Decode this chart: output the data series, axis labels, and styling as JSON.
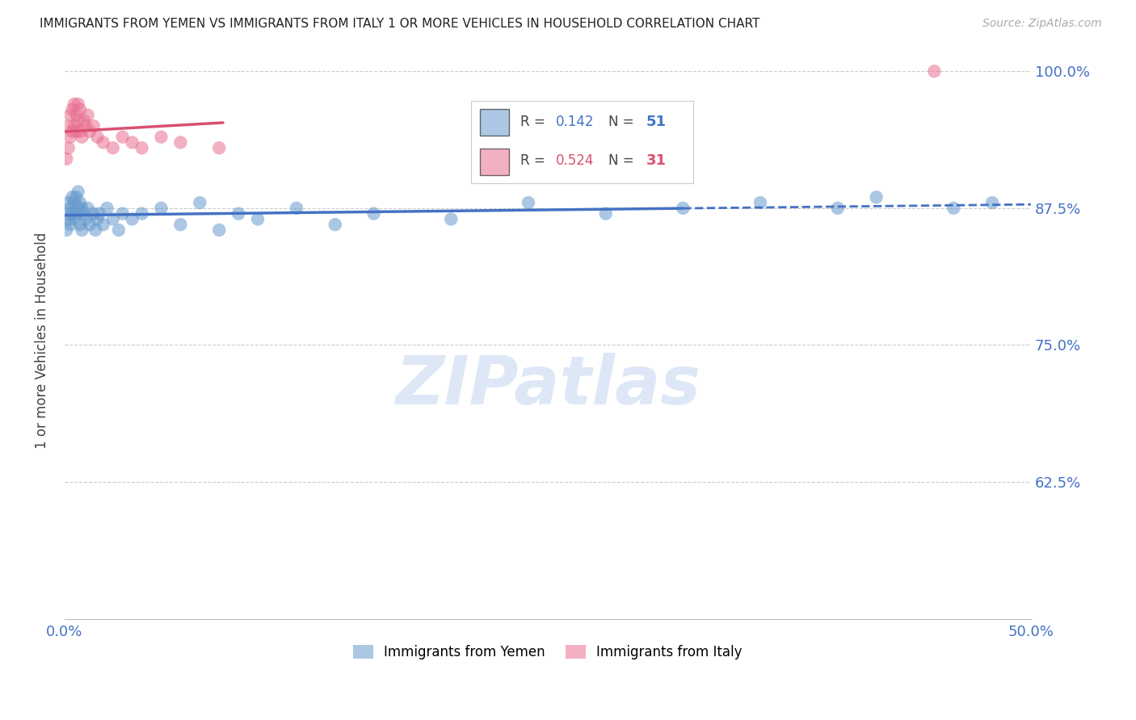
{
  "title": "IMMIGRANTS FROM YEMEN VS IMMIGRANTS FROM ITALY 1 OR MORE VEHICLES IN HOUSEHOLD CORRELATION CHART",
  "source": "Source: ZipAtlas.com",
  "ylabel": "1 or more Vehicles in Household",
  "xmin": 0.0,
  "xmax": 0.5,
  "ymin": 0.5,
  "ymax": 1.008,
  "yticks": [
    0.625,
    0.75,
    0.875,
    1.0
  ],
  "ytick_labels": [
    "62.5%",
    "75.0%",
    "87.5%",
    "100.0%"
  ],
  "yemen_color": "#6699cc",
  "italy_color": "#e87090",
  "yemen_line_color": "#4472c4",
  "italy_line_color": "#d95070",
  "background_color": "#ffffff",
  "grid_color": "#cccccc",
  "R_yemen": 0.142,
  "N_yemen": 51,
  "R_italy": 0.524,
  "N_italy": 31,
  "yemen_scatter_x": [
    0.001,
    0.001,
    0.002,
    0.002,
    0.003,
    0.003,
    0.004,
    0.004,
    0.005,
    0.005,
    0.006,
    0.006,
    0.007,
    0.007,
    0.008,
    0.008,
    0.009,
    0.009,
    0.01,
    0.011,
    0.012,
    0.013,
    0.015,
    0.016,
    0.017,
    0.018,
    0.02,
    0.022,
    0.025,
    0.028,
    0.03,
    0.035,
    0.04,
    0.05,
    0.06,
    0.07,
    0.08,
    0.09,
    0.1,
    0.12,
    0.14,
    0.16,
    0.2,
    0.24,
    0.28,
    0.32,
    0.36,
    0.4,
    0.42,
    0.46,
    0.48
  ],
  "yemen_scatter_y": [
    0.855,
    0.87,
    0.865,
    0.88,
    0.86,
    0.875,
    0.87,
    0.885,
    0.865,
    0.88,
    0.87,
    0.885,
    0.875,
    0.89,
    0.88,
    0.86,
    0.875,
    0.855,
    0.87,
    0.865,
    0.875,
    0.86,
    0.87,
    0.855,
    0.865,
    0.87,
    0.86,
    0.875,
    0.865,
    0.855,
    0.87,
    0.865,
    0.87,
    0.875,
    0.86,
    0.88,
    0.855,
    0.87,
    0.865,
    0.875,
    0.86,
    0.87,
    0.865,
    0.88,
    0.87,
    0.875,
    0.88,
    0.875,
    0.885,
    0.875,
    0.88
  ],
  "italy_scatter_x": [
    0.001,
    0.002,
    0.002,
    0.003,
    0.003,
    0.004,
    0.004,
    0.005,
    0.005,
    0.006,
    0.006,
    0.007,
    0.007,
    0.008,
    0.008,
    0.009,
    0.01,
    0.011,
    0.012,
    0.013,
    0.015,
    0.017,
    0.02,
    0.025,
    0.03,
    0.035,
    0.04,
    0.05,
    0.06,
    0.08,
    0.45
  ],
  "italy_scatter_y": [
    0.92,
    0.93,
    0.95,
    0.94,
    0.96,
    0.945,
    0.965,
    0.95,
    0.97,
    0.945,
    0.96,
    0.955,
    0.97,
    0.945,
    0.965,
    0.94,
    0.955,
    0.95,
    0.96,
    0.945,
    0.95,
    0.94,
    0.935,
    0.93,
    0.94,
    0.935,
    0.93,
    0.94,
    0.935,
    0.93,
    1.0
  ],
  "watermark": "ZIPatlas",
  "watermark_color": "#c8d8f0"
}
